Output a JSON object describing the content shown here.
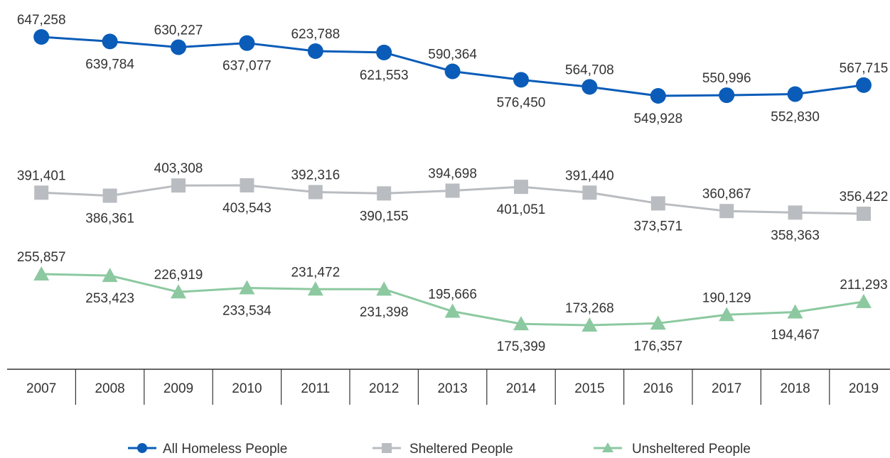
{
  "chart_data": {
    "type": "line",
    "x": [
      "2007",
      "2008",
      "2009",
      "2010",
      "2011",
      "2012",
      "2013",
      "2014",
      "2015",
      "2016",
      "2017",
      "2018",
      "2019"
    ],
    "series": [
      {
        "name": "All Homeless People",
        "marker": "circle",
        "color": "#0a5cb8",
        "values": [
          647258,
          639784,
          630227,
          637077,
          623788,
          621553,
          590364,
          576450,
          564708,
          549928,
          550996,
          552830,
          567715
        ],
        "labels": [
          "647,258",
          "639,784",
          "630,227",
          "637,077",
          "623,788",
          "621,553",
          "590,364",
          "576,450",
          "564,708",
          "549,928",
          "550,996",
          "552,830",
          "567,715"
        ],
        "label_pos": [
          "above",
          "below",
          "above",
          "below",
          "above",
          "below",
          "above",
          "below",
          "above",
          "below",
          "above",
          "below",
          "above"
        ]
      },
      {
        "name": "Sheltered People",
        "marker": "square",
        "color": "#b9bcc0",
        "values": [
          391401,
          386361,
          403308,
          403543,
          392316,
          390155,
          394698,
          401051,
          391440,
          373571,
          360867,
          358363,
          356422
        ],
        "labels": [
          "391,401",
          "386,361",
          "403,308",
          "403,543",
          "392,316",
          "390,155",
          "394,698",
          "401,051",
          "391,440",
          "373,571",
          "360,867",
          "358,363",
          "356,422"
        ],
        "label_pos": [
          "above",
          "below",
          "above",
          "below",
          "above",
          "below",
          "above",
          "below",
          "above",
          "below",
          "above",
          "below",
          "above"
        ]
      },
      {
        "name": "Unsheltered People",
        "marker": "triangle",
        "color": "#8cc9a0",
        "values": [
          255857,
          253423,
          226919,
          233534,
          231472,
          231398,
          195666,
          175399,
          173268,
          176357,
          190129,
          194467,
          211293
        ],
        "labels": [
          "255,857",
          "253,423",
          "226,919",
          "233,534",
          "231,472",
          "231,398",
          "195,666",
          "175,399",
          "173,268",
          "176,357",
          "190,129",
          "194,467",
          "211,293"
        ],
        "label_pos": [
          "above",
          "below",
          "above",
          "below",
          "above",
          "below",
          "above",
          "below",
          "above",
          "below",
          "above",
          "below",
          "above"
        ]
      }
    ],
    "grid": false,
    "legend_position": "bottom",
    "axis_color": "#333333"
  }
}
